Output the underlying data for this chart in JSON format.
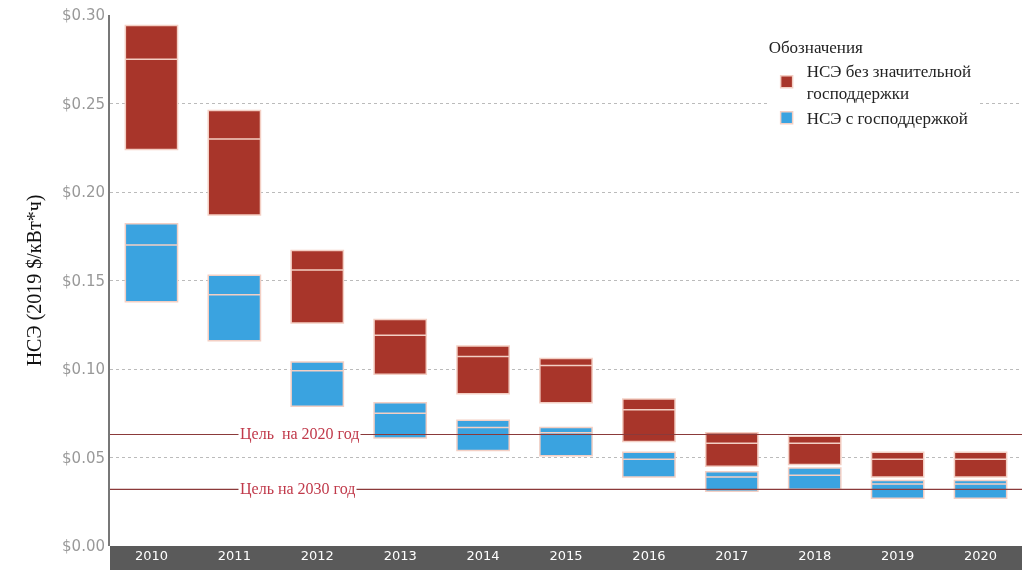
{
  "chart_data": {
    "type": "box",
    "ylabel": "НСЭ (2019 $/кВт*ч)",
    "legend_title": "Обозначения",
    "categories": [
      "2010",
      "2011",
      "2012",
      "2013",
      "2014",
      "2015",
      "2016",
      "2017",
      "2018",
      "2019",
      "2020"
    ],
    "series": [
      {
        "name": "НСЭ без значительной господдержки",
        "color": "#a8352a",
        "boxes": [
          {
            "q1": 0.224,
            "median": 0.275,
            "q3": 0.294
          },
          {
            "q1": 0.187,
            "median": 0.23,
            "q3": 0.246
          },
          {
            "q1": 0.126,
            "median": 0.156,
            "q3": 0.167
          },
          {
            "q1": 0.097,
            "median": 0.119,
            "q3": 0.128
          },
          {
            "q1": 0.086,
            "median": 0.107,
            "q3": 0.113
          },
          {
            "q1": 0.081,
            "median": 0.102,
            "q3": 0.106
          },
          {
            "q1": 0.059,
            "median": 0.077,
            "q3": 0.083
          },
          {
            "q1": 0.045,
            "median": 0.058,
            "q3": 0.064
          },
          {
            "q1": 0.046,
            "median": 0.058,
            "q3": 0.062
          },
          {
            "q1": 0.039,
            "median": 0.049,
            "q3": 0.053
          },
          {
            "q1": 0.039,
            "median": 0.049,
            "q3": 0.053
          }
        ]
      },
      {
        "name": "НСЭ с господдержкой",
        "color": "#3aa3e0",
        "boxes": [
          {
            "q1": 0.138,
            "median": 0.17,
            "q3": 0.182
          },
          {
            "q1": 0.116,
            "median": 0.142,
            "q3": 0.153
          },
          {
            "q1": 0.079,
            "median": 0.099,
            "q3": 0.104
          },
          {
            "q1": 0.061,
            "median": 0.075,
            "q3": 0.081
          },
          {
            "q1": 0.054,
            "median": 0.067,
            "q3": 0.071
          },
          {
            "q1": 0.051,
            "median": 0.064,
            "q3": 0.067
          },
          {
            "q1": 0.039,
            "median": 0.049,
            "q3": 0.053
          },
          {
            "q1": 0.031,
            "median": 0.039,
            "q3": 0.042
          },
          {
            "q1": 0.032,
            "median": 0.04,
            "q3": 0.044
          },
          {
            "q1": 0.027,
            "median": 0.035,
            "q3": 0.037
          },
          {
            "q1": 0.027,
            "median": 0.035,
            "q3": 0.037
          }
        ]
      }
    ],
    "ylim": [
      0,
      0.3
    ],
    "yticks": [
      {
        "value": 0,
        "label": "$0.00"
      },
      {
        "value": 0.05,
        "label": "$0.05"
      },
      {
        "value": 0.1,
        "label": "$0.10"
      },
      {
        "value": 0.15,
        "label": "$0.15"
      },
      {
        "value": 0.2,
        "label": "$0.20"
      },
      {
        "value": 0.25,
        "label": "$0.25"
      },
      {
        "value": 0.3,
        "label": "$0.30"
      }
    ],
    "ref_lines": [
      {
        "axis": "y",
        "value": 0.063,
        "label": "Цель  на 2020 год",
        "color": "#8b3a3a"
      },
      {
        "axis": "y",
        "value": 0.032,
        "label": "Цель на 2030 год",
        "color": "#8b3a3a"
      }
    ],
    "grid": "y",
    "legend": "top right"
  }
}
